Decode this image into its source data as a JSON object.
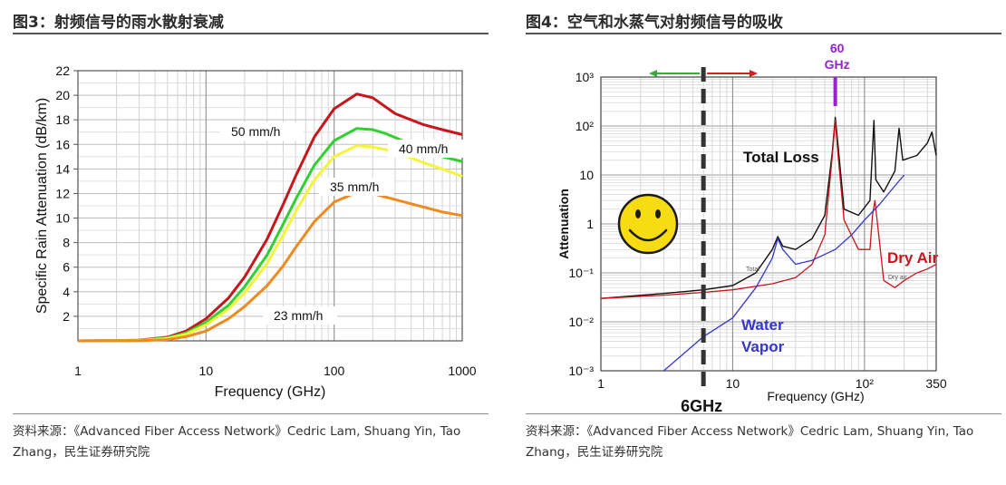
{
  "left": {
    "title": "图3：射频信号的雨水散射衰减",
    "source": "资料来源：《Advanced Fiber Access Network》Cedric Lam, Shuang Yin, Tao Zhang，民生证券研究院"
  },
  "right": {
    "title": "图4：空气和水蒸气对射频信号的吸收",
    "source": "资料来源：《Advanced Fiber Access Network》Cedric Lam, Shuang Yin, Tao Zhang，民生证券研究院"
  },
  "colors": {
    "red": "#c8161d",
    "green": "#2fd12f",
    "yellow": "#f4f43a",
    "orange": "#ef8a1e",
    "black": "#111111",
    "blue": "#3535d0",
    "purple": "#9a1fd0"
  },
  "chart_data": [
    {
      "type": "line",
      "xlabel": "Frequency (GHz)",
      "ylabel": "Specific Rain Attenuation (dB/km)",
      "xscale": "log",
      "xlim": [
        1,
        1000
      ],
      "ylim": [
        0,
        22
      ],
      "xticks": [
        "1",
        "10",
        "100",
        "1000"
      ],
      "yticks": [
        "2",
        "4",
        "6",
        "8",
        "10",
        "12",
        "14",
        "16",
        "18",
        "20",
        "22"
      ],
      "grid": true,
      "series": [
        {
          "name": "50 mm/h",
          "color": "#c8161d",
          "x": [
            1,
            3,
            5,
            7,
            10,
            15,
            20,
            30,
            40,
            50,
            70,
            100,
            150,
            200,
            300,
            500,
            700,
            1000
          ],
          "y": [
            0,
            0.05,
            0.3,
            0.8,
            1.8,
            3.5,
            5.2,
            8.3,
            11.1,
            13.4,
            16.6,
            18.9,
            20.1,
            19.8,
            18.5,
            17.6,
            17.2,
            16.8
          ]
        },
        {
          "name": "40 mm/h",
          "color": "#2fd12f",
          "x": [
            1,
            3,
            5,
            7,
            10,
            15,
            20,
            30,
            40,
            50,
            70,
            100,
            150,
            200,
            250,
            500,
            700,
            1000
          ],
          "y": [
            0,
            0.04,
            0.25,
            0.65,
            1.5,
            2.9,
            4.4,
            7.0,
            9.5,
            11.5,
            14.3,
            16.3,
            17.3,
            17.2,
            16.9,
            15.6,
            15.0,
            14.6
          ]
        },
        {
          "name": "35 mm/h",
          "color": "#f4f43a",
          "x": [
            1,
            3,
            5,
            7,
            10,
            15,
            20,
            30,
            40,
            50,
            70,
            100,
            150,
            200,
            300,
            500,
            700,
            1000
          ],
          "y": [
            0,
            0.03,
            0.2,
            0.55,
            1.3,
            2.6,
            3.9,
            6.3,
            8.6,
            10.5,
            13.1,
            15.0,
            15.9,
            15.8,
            15.4,
            14.5,
            14.0,
            13.4
          ]
        },
        {
          "name": "23 mm/h",
          "color": "#ef8a1e",
          "x": [
            1,
            3,
            5,
            7,
            10,
            15,
            20,
            30,
            40,
            50,
            70,
            100,
            150,
            200,
            300,
            500,
            700,
            1000
          ],
          "y": [
            0,
            0.02,
            0.1,
            0.35,
            0.8,
            1.8,
            2.8,
            4.5,
            6.1,
            7.6,
            9.7,
            11.3,
            12.1,
            12.0,
            11.5,
            10.9,
            10.5,
            10.2
          ]
        }
      ]
    },
    {
      "type": "line",
      "xlabel": "Frequency (GHz)",
      "ylabel": "Attenuation",
      "xscale": "log",
      "yscale": "log",
      "xlim": [
        1,
        350
      ],
      "ylim": [
        0.001,
        1000
      ],
      "xticks": [
        "1",
        "10",
        "10²",
        "350"
      ],
      "yticks": [
        "10⁻³",
        "10⁻²",
        "10⁻¹",
        "1",
        "10",
        "10²",
        "10³"
      ],
      "grid": true,
      "series": [
        {
          "name": "Total Loss",
          "color": "#111111",
          "x": [
            1,
            3,
            6,
            10,
            15,
            20,
            22,
            24,
            30,
            40,
            50,
            57,
            60,
            63,
            70,
            90,
            110,
            118,
            122,
            140,
            170,
            183,
            195,
            250,
            300,
            325,
            350
          ],
          "y": [
            0.03,
            0.038,
            0.045,
            0.055,
            0.1,
            0.3,
            0.55,
            0.35,
            0.3,
            0.5,
            1.5,
            30,
            150,
            40,
            2,
            1.5,
            3,
            130,
            8,
            4.5,
            12,
            90,
            20,
            25,
            45,
            75,
            25
          ]
        },
        {
          "name": "Dry Air",
          "color": "#c8161d",
          "x": [
            1,
            3,
            6,
            10,
            20,
            30,
            40,
            50,
            57,
            60,
            63,
            70,
            90,
            110,
            115,
            120,
            140,
            170,
            200,
            250,
            300,
            350
          ],
          "y": [
            0.03,
            0.035,
            0.04,
            0.045,
            0.06,
            0.08,
            0.15,
            0.6,
            25,
            130,
            25,
            1.2,
            0.3,
            0.3,
            1.5,
            3,
            0.07,
            0.05,
            0.07,
            0.1,
            0.12,
            0.15
          ]
        },
        {
          "name": "Water Vapor",
          "color": "#3535d0",
          "x": [
            3,
            6,
            10,
            15,
            20,
            22,
            24,
            30,
            40,
            60,
            80,
            100,
            130,
            170,
            200
          ],
          "y": [
            0.001,
            0.005,
            0.012,
            0.05,
            0.2,
            0.5,
            0.3,
            0.15,
            0.18,
            0.3,
            0.6,
            1.2,
            2.5,
            6,
            10
          ]
        }
      ],
      "annotations": {
        "marker_6ghz": "6GHz",
        "marker_60ghz_line1": "60",
        "marker_60ghz_line2": "GHz",
        "small_label_total": "Total",
        "small_label_dry": "Dry air"
      }
    }
  ]
}
